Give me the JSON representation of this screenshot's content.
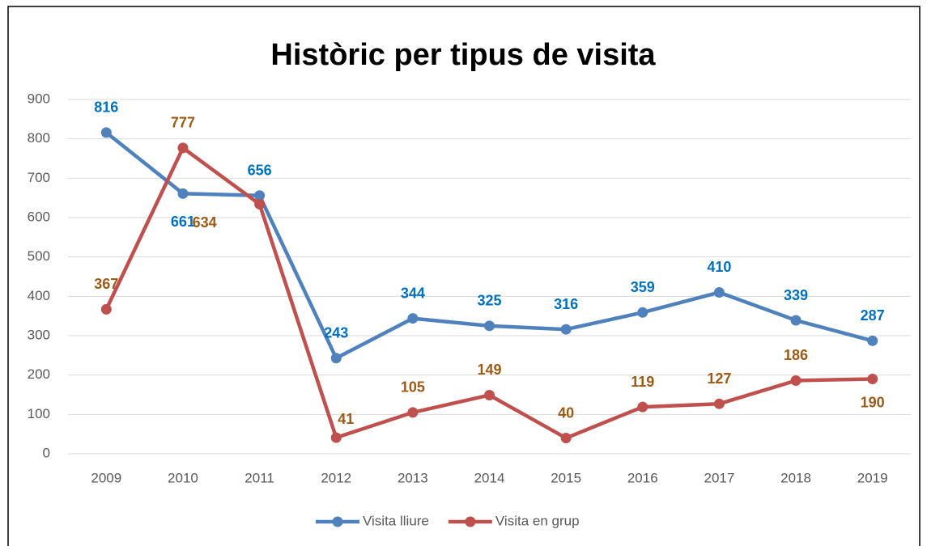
{
  "chart_data": {
    "type": "line",
    "title": "Històric per tipus de visita",
    "categories": [
      "2009",
      "2010",
      "2011",
      "2012",
      "2013",
      "2014",
      "2015",
      "2016",
      "2017",
      "2018",
      "2019"
    ],
    "series": [
      {
        "name": "Visita lliure",
        "color": "#4f81bd",
        "label_color": "#0070c0",
        "values": [
          816,
          661,
          656,
          243,
          344,
          325,
          316,
          359,
          410,
          339,
          287
        ]
      },
      {
        "name": "Visita en grup",
        "color": "#c0504d",
        "label_color": "#9c5a14",
        "values": [
          367,
          777,
          634,
          41,
          105,
          149,
          40,
          119,
          127,
          186,
          190
        ]
      }
    ],
    "ylim": [
      0,
      900
    ],
    "yticks": [
      0,
      100,
      200,
      300,
      400,
      500,
      600,
      700,
      800,
      900
    ],
    "grid": true,
    "legend": "bottom"
  }
}
